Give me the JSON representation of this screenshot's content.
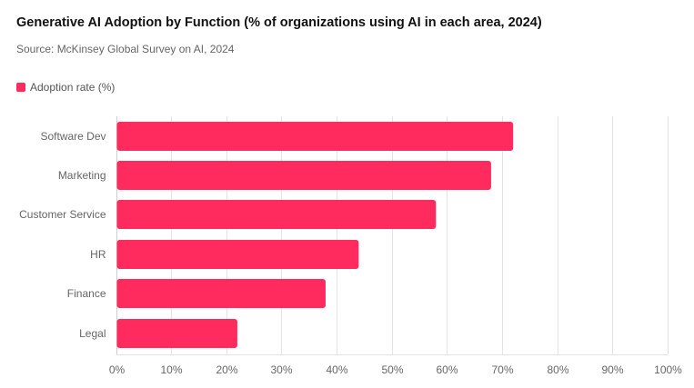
{
  "chart_data": {
    "type": "bar",
    "orientation": "horizontal",
    "title": "Generative AI Adoption by Function (% of organizations using AI in each area, 2024)",
    "subtitle": "Source: McKinsey Global Survey on AI, 2024",
    "categories": [
      "Software Dev",
      "Marketing",
      "Customer Service",
      "HR",
      "Finance",
      "Legal"
    ],
    "series": [
      {
        "name": "Adoption rate (%)",
        "color": "#ff2a5d",
        "values": [
          72,
          68,
          58,
          44,
          38,
          22
        ]
      }
    ],
    "xlim": [
      0,
      100
    ],
    "x_ticks": [
      "0%",
      "10%",
      "20%",
      "30%",
      "40%",
      "50%",
      "60%",
      "70%",
      "80%",
      "90%",
      "100%"
    ],
    "grid": "vertical",
    "legend_position": "top-left"
  }
}
